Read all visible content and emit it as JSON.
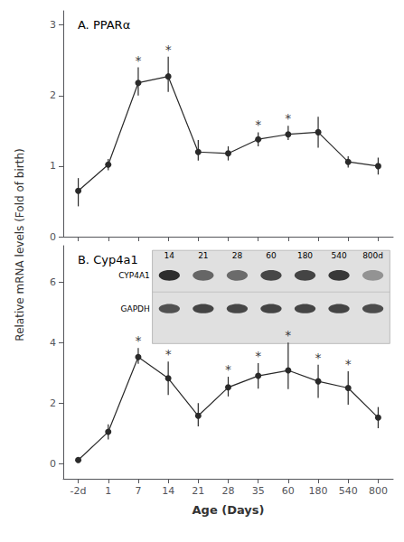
{
  "chart_data": [
    {
      "type": "line",
      "title": "A. PPARα",
      "ylabel": "Relative mRNA levels (Fold of birth)",
      "categories": [
        "-2d",
        "1",
        "7",
        "14",
        "21",
        "28",
        "35",
        "60",
        "180",
        "540",
        "800"
      ],
      "series": [
        {
          "color": "#2a2a2a",
          "marker": "circle",
          "line_style": "solid",
          "values": [
            0.65,
            1.02,
            2.18,
            2.27,
            1.2,
            1.18,
            1.38,
            1.45,
            1.48,
            1.06,
            1.0
          ],
          "error_upper": [
            0.18,
            0.08,
            0.22,
            0.28,
            0.17,
            0.1,
            0.1,
            0.12,
            0.22,
            0.08,
            0.12
          ],
          "error_lower": [
            0.22,
            0.08,
            0.18,
            0.22,
            0.12,
            0.1,
            0.1,
            0.08,
            0.22,
            0.08,
            0.12
          ]
        }
      ],
      "annotations": [
        {
          "category": "7",
          "text": "*"
        },
        {
          "category": "14",
          "text": "*"
        },
        {
          "category": "35",
          "text": "*"
        },
        {
          "category": "60",
          "text": "*"
        }
      ],
      "ylim": [
        0,
        3.2
      ],
      "yticks": [
        0,
        1,
        2,
        3
      ],
      "grid": false,
      "tick_labels": "y"
    },
    {
      "type": "line",
      "title": "B. Cyp4a1",
      "xlabel": "Age (Days)",
      "categories": [
        "-2d",
        "1",
        "7",
        "14",
        "21",
        "28",
        "35",
        "60",
        "180",
        "540",
        "800"
      ],
      "series": [
        {
          "color": "#2a2a2a",
          "marker": "circle",
          "line_style": "solid",
          "values": [
            0.12,
            1.05,
            3.52,
            2.82,
            1.58,
            2.52,
            2.9,
            3.08,
            2.72,
            2.5,
            1.52
          ],
          "error_upper": [
            0.08,
            0.25,
            0.3,
            0.55,
            0.42,
            0.35,
            0.42,
            0.92,
            0.55,
            0.55,
            0.35
          ],
          "error_lower": [
            0.05,
            0.25,
            0.22,
            0.55,
            0.35,
            0.3,
            0.42,
            0.62,
            0.55,
            0.55,
            0.35
          ]
        }
      ],
      "annotations": [
        {
          "category": "7",
          "text": "*"
        },
        {
          "category": "14",
          "text": "*"
        },
        {
          "category": "28",
          "text": "*"
        },
        {
          "category": "35",
          "text": "*"
        },
        {
          "category": "60",
          "text": "*"
        },
        {
          "category": "180",
          "text": "*"
        },
        {
          "category": "540",
          "text": "*"
        }
      ],
      "ylim": [
        -0.5,
        7.2
      ],
      "yticks": [
        0,
        2,
        4,
        6
      ],
      "grid": false,
      "inset": {
        "type": "blot",
        "color": "#e0e0e0",
        "columns": [
          "14",
          "21",
          "28",
          "60",
          "180",
          "540",
          "800d"
        ],
        "rows": [
          {
            "name": "CYP4A1",
            "intensities": [
              0.82,
              0.6,
              0.58,
              0.72,
              0.73,
              0.78,
              0.42
            ]
          },
          {
            "name": "GAPDH",
            "intensities": [
              0.68,
              0.73,
              0.72,
              0.73,
              0.73,
              0.73,
              0.7
            ]
          }
        ]
      }
    }
  ]
}
